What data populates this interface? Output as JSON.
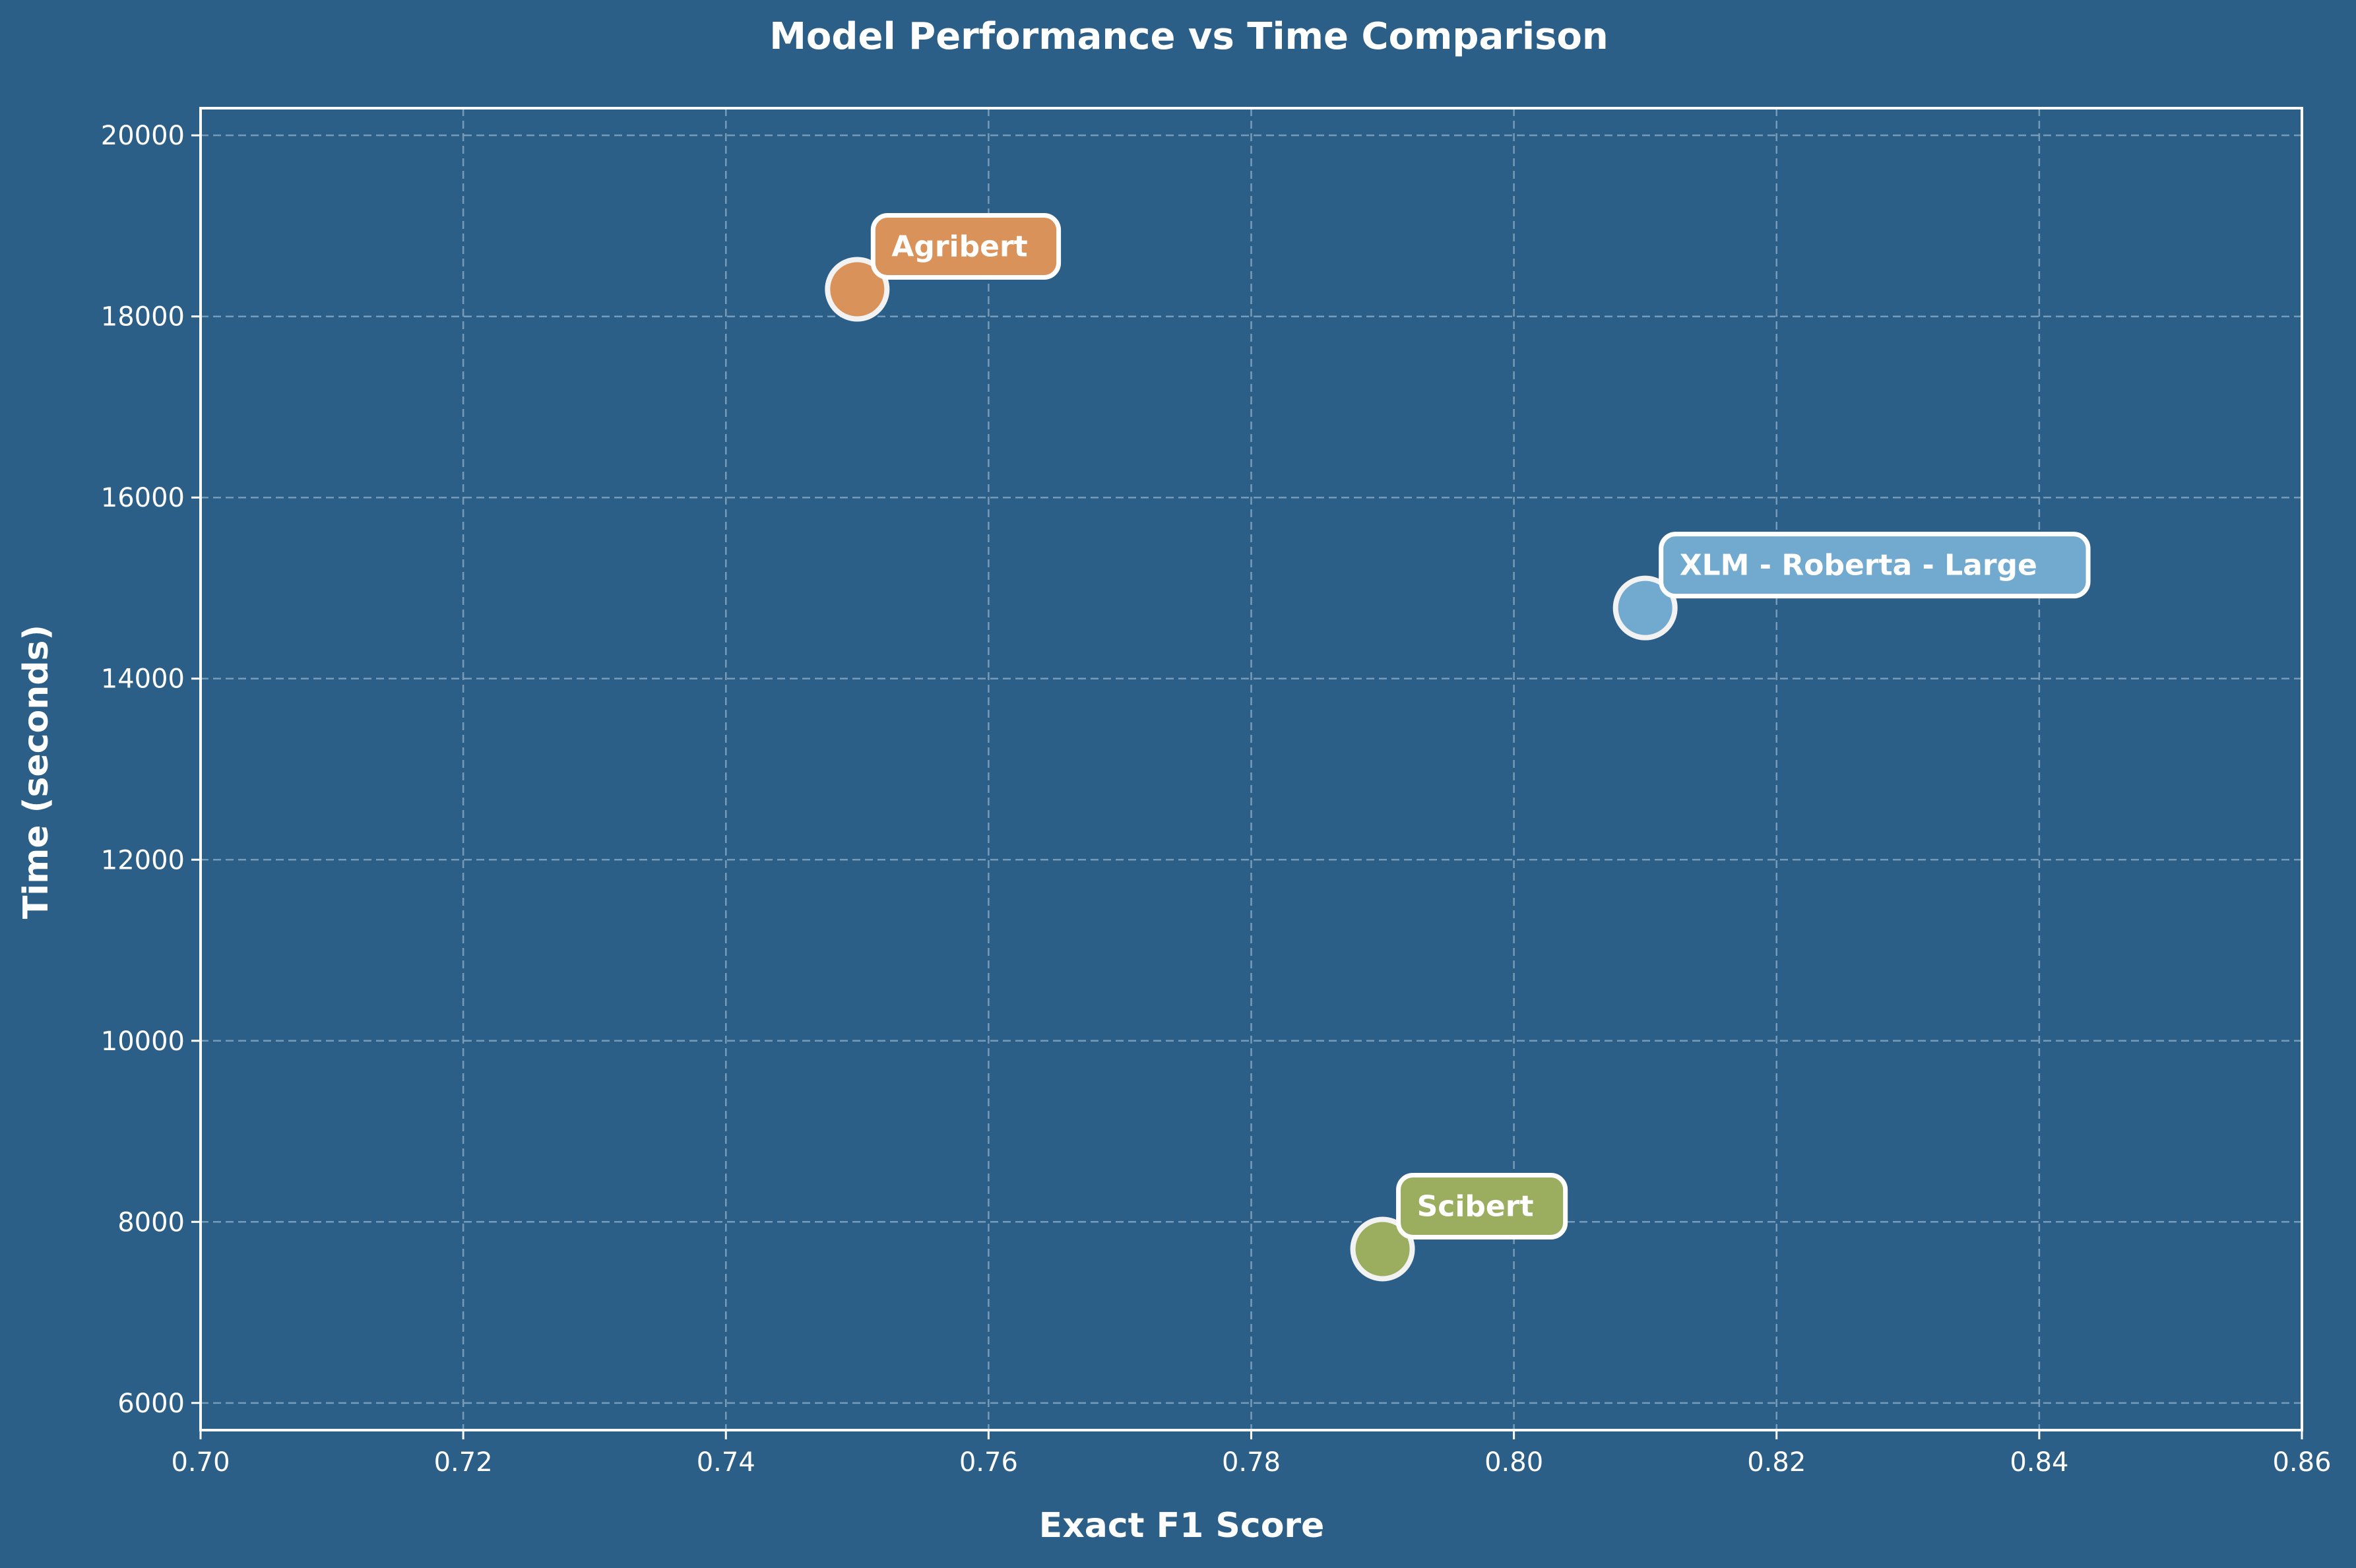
{
  "chart_data": {
    "type": "scatter",
    "title": "Model Performance vs Time Comparison",
    "xlabel": "Exact F1 Score",
    "ylabel": "Time (seconds)",
    "xlim": [
      0.7,
      0.86
    ],
    "ylim": [
      5700,
      20300
    ],
    "xticks": [
      "0.70",
      "0.72",
      "0.74",
      "0.76",
      "0.78",
      "0.80",
      "0.82",
      "0.84",
      "0.86"
    ],
    "yticks": [
      "6000",
      "8000",
      "10000",
      "12000",
      "14000",
      "16000",
      "18000",
      "20000"
    ],
    "grid": true,
    "series": [
      {
        "name": "Agribert",
        "x": 0.75,
        "y": 18300,
        "color": "#d9925a"
      },
      {
        "name": "XLM - Roberta - Large",
        "x": 0.81,
        "y": 14780,
        "color": "#72a9cf"
      },
      {
        "name": "Scibert",
        "x": 0.79,
        "y": 7700,
        "color": "#9bad5e"
      }
    ]
  },
  "colors": {
    "background": "#2c5f88",
    "foreground": "#ffffff",
    "grid": "#8fb0c8"
  }
}
